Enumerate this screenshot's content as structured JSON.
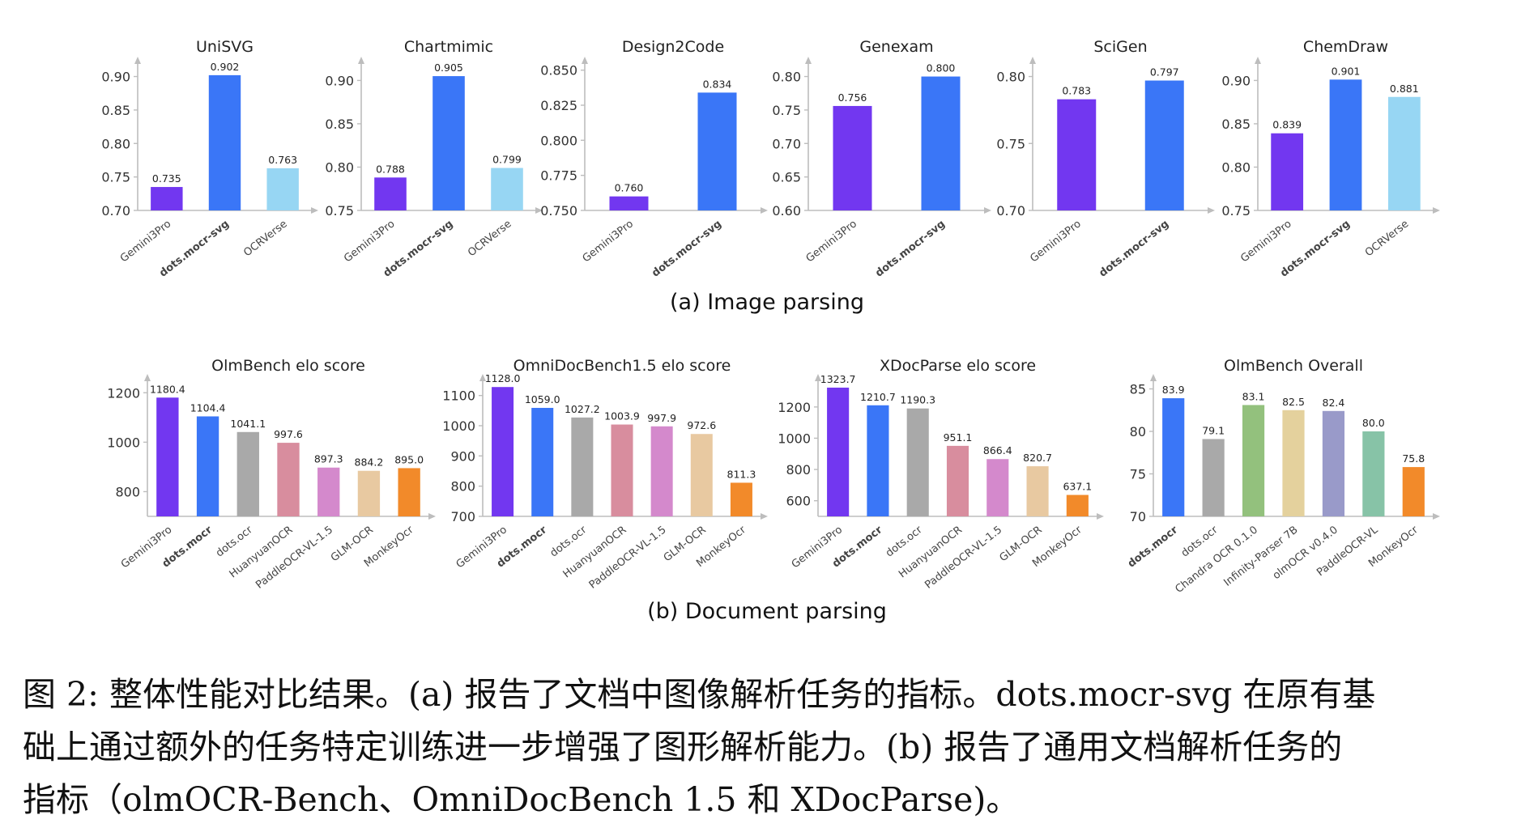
{
  "panels": {
    "a_label": "(a) Image parsing",
    "b_label": "(b) Document parsing"
  },
  "caption": {
    "line1": "图 2: 整体性能对比结果。(a) 报告了文档中图像解析任务的指标。dots.mocr-svg 在原有基",
    "line2": "础上通过额外的任务特定训练进一步增强了图形解析能力。(b) 报告了通用文档解析任务的",
    "line3": "指标（olmOCR-Bench、OmniDocBench 1.5 和 XDocParse)。"
  },
  "colors": {
    "Gemini3Pro": "#7237f0",
    "dots.mocr-svg": "#3a76f7",
    "dots.mocr": "#3a76f7",
    "OCRVerse": "#97d6f3",
    "dots.ocr": "#a9a9a9",
    "HuanyuanOCR": "#d88d9e",
    "PaddleOCR-VL-1.5": "#d489cc",
    "GLM-OCR": "#e8c9a1",
    "MonkeyOcr": "#f28a2a",
    "Chandra OCR 0.1.0": "#93c17d",
    "Infinity-Parser 7B": "#e4d19d",
    "olmOCR v0.4.0": "#999ac9",
    "PaddleOCR-VL": "#87c3a7"
  },
  "chart_data": [
    {
      "type": "bar",
      "title": "UniSVG",
      "categories": [
        "Gemini3Pro",
        "dots.mocr-svg",
        "OCRVerse"
      ],
      "values": [
        0.735,
        0.902,
        0.763
      ],
      "labels": [
        "0.735",
        "0.902",
        "0.763"
      ],
      "ylim": [
        0.7,
        0.92
      ],
      "yticks": [
        "0.70",
        "0.75",
        "0.80",
        "0.85",
        "0.90"
      ],
      "bold": "dots.mocr-svg"
    },
    {
      "type": "bar",
      "title": "Chartmimic",
      "categories": [
        "Gemini3Pro",
        "dots.mocr-svg",
        "OCRVerse"
      ],
      "values": [
        0.788,
        0.905,
        0.799
      ],
      "labels": [
        "0.788",
        "0.905",
        "0.799"
      ],
      "ylim": [
        0.75,
        0.92
      ],
      "yticks": [
        "0.75",
        "0.80",
        "0.85",
        "0.90"
      ],
      "bold": "dots.mocr-svg"
    },
    {
      "type": "bar",
      "title": "Design2Code",
      "categories": [
        "Gemini3Pro",
        "dots.mocr-svg"
      ],
      "values": [
        0.76,
        0.834
      ],
      "labels": [
        "0.760",
        "0.834"
      ],
      "ylim": [
        0.75,
        0.855
      ],
      "yticks": [
        "0.750",
        "0.775",
        "0.800",
        "0.825",
        "0.850"
      ],
      "bold": "dots.mocr-svg"
    },
    {
      "type": "bar",
      "title": "Genexam",
      "categories": [
        "Gemini3Pro",
        "dots.mocr-svg"
      ],
      "values": [
        0.756,
        0.8
      ],
      "labels": [
        "0.756",
        "0.800"
      ],
      "ylim": [
        0.6,
        0.82
      ],
      "yticks": [
        "0.60",
        "0.65",
        "0.70",
        "0.75",
        "0.80"
      ],
      "bold": "dots.mocr-svg"
    },
    {
      "type": "bar",
      "title": "SciGen",
      "categories": [
        "Gemini3Pro",
        "dots.mocr-svg"
      ],
      "values": [
        0.783,
        0.797
      ],
      "labels": [
        "0.783",
        "0.797"
      ],
      "ylim": [
        0.7,
        0.81
      ],
      "yticks": [
        "0.70",
        "0.75",
        "0.80"
      ],
      "bold": "dots.mocr-svg"
    },
    {
      "type": "bar",
      "title": "ChemDraw",
      "categories": [
        "Gemini3Pro",
        "dots.mocr-svg",
        "OCRVerse"
      ],
      "values": [
        0.839,
        0.901,
        0.881
      ],
      "labels": [
        "0.839",
        "0.901",
        "0.881"
      ],
      "ylim": [
        0.75,
        0.92
      ],
      "yticks": [
        "0.75",
        "0.80",
        "0.85",
        "0.90"
      ],
      "bold": "dots.mocr-svg"
    },
    {
      "type": "bar",
      "title": "OlmBench elo score",
      "categories": [
        "Gemini3Pro",
        "dots.mocr",
        "dots.ocr",
        "HuanyuanOCR",
        "PaddleOCR-VL-1.5",
        "GLM-OCR",
        "MonkeyOcr"
      ],
      "values": [
        1180.4,
        1104.4,
        1041.1,
        997.6,
        897.3,
        884.2,
        895.0
      ],
      "labels": [
        "1180.4",
        "1104.4",
        "1041.1",
        "997.6",
        "897.3",
        "884.2",
        "895.0"
      ],
      "ylim": [
        700,
        1250
      ],
      "yticks": [
        "800",
        "1000",
        "1200"
      ],
      "bold": "dots.mocr"
    },
    {
      "type": "bar",
      "title": "OmniDocBench1.5 elo score",
      "categories": [
        "Gemini3Pro",
        "dots.mocr",
        "dots.ocr",
        "HuanyuanOCR",
        "PaddleOCR-VL-1.5",
        "GLM-OCR",
        "MonkeyOcr"
      ],
      "values": [
        1128.0,
        1059.0,
        1027.2,
        1003.9,
        997.9,
        972.6,
        811.3
      ],
      "labels": [
        "1128.0",
        "1059.0",
        "1027.2",
        "1003.9",
        "997.9",
        "972.6",
        "811.3"
      ],
      "ylim": [
        700,
        1150
      ],
      "yticks": [
        "700",
        "800",
        "900",
        "1000",
        "1100"
      ],
      "bold": "dots.mocr"
    },
    {
      "type": "bar",
      "title": "XDocParse elo score",
      "categories": [
        "Gemini3Pro",
        "dots.mocr",
        "dots.ocr",
        "HuanyuanOCR",
        "PaddleOCR-VL-1.5",
        "GLM-OCR",
        "MonkeyOcr"
      ],
      "values": [
        1323.7,
        1210.7,
        1190.3,
        951.1,
        866.4,
        820.7,
        637.1
      ],
      "labels": [
        "1323.7",
        "1210.7",
        "1190.3",
        "951.1",
        "866.4",
        "820.7",
        "637.1"
      ],
      "ylim": [
        500,
        1370
      ],
      "yticks": [
        "600",
        "800",
        "1000",
        "1200"
      ],
      "bold": "dots.mocr"
    },
    {
      "type": "bar",
      "title": "OlmBench Overall",
      "categories": [
        "dots.mocr",
        "dots.ocr",
        "Chandra OCR 0.1.0",
        "Infinity-Parser 7B",
        "olmOCR v0.4.0",
        "PaddleOCR-VL",
        "MonkeyOcr"
      ],
      "values": [
        83.9,
        79.1,
        83.1,
        82.5,
        82.4,
        80.0,
        75.8
      ],
      "labels": [
        "83.9",
        "79.1",
        "83.1",
        "82.5",
        "82.4",
        "80.0",
        "75.8"
      ],
      "ylim": [
        70,
        86
      ],
      "yticks": [
        "70",
        "75",
        "80",
        "85"
      ],
      "bold": "dots.mocr"
    }
  ]
}
